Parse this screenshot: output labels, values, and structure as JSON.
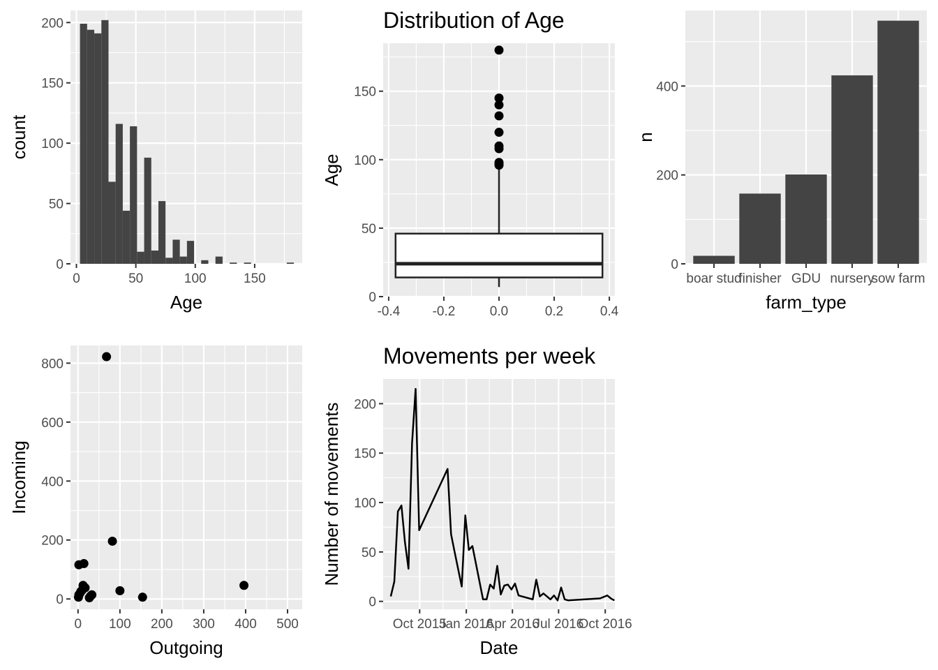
{
  "chart_data": [
    {
      "id": "hist",
      "type": "bar",
      "subtype": "histogram",
      "title": "",
      "xlabel": "Age",
      "ylabel": "count",
      "xlim": [
        -5,
        190
      ],
      "ylim": [
        0,
        210
      ],
      "xticks": [
        0,
        50,
        100,
        150
      ],
      "yticks": [
        0,
        50,
        100,
        150,
        200
      ],
      "bin_width": 6,
      "bins": [
        {
          "x0": 3,
          "x1": 9,
          "count": 199
        },
        {
          "x0": 9,
          "x1": 15,
          "count": 194
        },
        {
          "x0": 15,
          "x1": 21,
          "count": 191
        },
        {
          "x0": 21,
          "x1": 27,
          "count": 202
        },
        {
          "x0": 27,
          "x1": 33,
          "count": 68
        },
        {
          "x0": 33,
          "x1": 39,
          "count": 116
        },
        {
          "x0": 39,
          "x1": 45,
          "count": 44
        },
        {
          "x0": 45,
          "x1": 51,
          "count": 114
        },
        {
          "x0": 51,
          "x1": 57,
          "count": 10
        },
        {
          "x0": 57,
          "x1": 63,
          "count": 88
        },
        {
          "x0": 63,
          "x1": 69,
          "count": 11
        },
        {
          "x0": 69,
          "x1": 75,
          "count": 52
        },
        {
          "x0": 75,
          "x1": 81,
          "count": 5
        },
        {
          "x0": 81,
          "x1": 87,
          "count": 20
        },
        {
          "x0": 87,
          "x1": 93,
          "count": 6
        },
        {
          "x0": 93,
          "x1": 99,
          "count": 19
        },
        {
          "x0": 105,
          "x1": 111,
          "count": 3
        },
        {
          "x0": 117,
          "x1": 123,
          "count": 6
        },
        {
          "x0": 129,
          "x1": 135,
          "count": 1
        },
        {
          "x0": 141,
          "x1": 147,
          "count": 1
        },
        {
          "x0": 177,
          "x1": 183,
          "count": 1
        }
      ]
    },
    {
      "id": "box",
      "type": "box",
      "title": "Distribution of Age",
      "xlabel": "",
      "ylabel": "Age",
      "xlim": [
        -0.42,
        0.42
      ],
      "ylim": [
        0,
        185
      ],
      "xticks": [
        -0.4,
        -0.2,
        0.0,
        0.2,
        0.4
      ],
      "xtick_labels": [
        "-0.4",
        "-0.2",
        "0.0",
        "0.2",
        "0.4"
      ],
      "yticks": [
        0,
        50,
        100,
        150
      ],
      "box": {
        "x0": -0.375,
        "x1": 0.375,
        "lower_whisker": 7,
        "q1": 14,
        "median": 24,
        "q3": 46,
        "upper_whisker": 94
      },
      "outliers": [
        96,
        97,
        98,
        108,
        110,
        120,
        132,
        140,
        145,
        180
      ]
    },
    {
      "id": "farm",
      "type": "bar",
      "title": "",
      "xlabel": "farm_type",
      "ylabel": "n",
      "ylim": [
        0,
        570
      ],
      "yticks": [
        0,
        200,
        400
      ],
      "categories": [
        "boar stud",
        "finisher",
        "GDU",
        "nursery",
        "sow farm"
      ],
      "values": [
        18,
        158,
        201,
        424,
        547
      ]
    },
    {
      "id": "scatter",
      "type": "scatter",
      "title": "",
      "xlabel": "Outgoing",
      "ylabel": "Incoming",
      "xlim": [
        -18,
        535
      ],
      "ylim": [
        -35,
        860
      ],
      "xticks": [
        0,
        100,
        200,
        300,
        400,
        500
      ],
      "yticks": [
        0,
        200,
        400,
        600,
        800
      ],
      "points": [
        {
          "x": 68,
          "y": 822
        },
        {
          "x": 82,
          "y": 196
        },
        {
          "x": 2,
          "y": 116
        },
        {
          "x": 14,
          "y": 120
        },
        {
          "x": 12,
          "y": 46
        },
        {
          "x": 17,
          "y": 38
        },
        {
          "x": 7,
          "y": 26
        },
        {
          "x": 2,
          "y": 14
        },
        {
          "x": 1,
          "y": 6
        },
        {
          "x": 5,
          "y": 20
        },
        {
          "x": 10,
          "y": 30
        },
        {
          "x": 27,
          "y": 4
        },
        {
          "x": 33,
          "y": 14
        },
        {
          "x": 30,
          "y": 10
        },
        {
          "x": 100,
          "y": 28
        },
        {
          "x": 154,
          "y": 6
        },
        {
          "x": 396,
          "y": 46
        }
      ]
    },
    {
      "id": "line",
      "type": "line",
      "title": "Movements per week",
      "xlabel": "Date",
      "ylabel": "Number of movements",
      "x_type": "date",
      "xlim": [
        "2015-07-21",
        "2016-10-20"
      ],
      "ylim": [
        -8,
        225
      ],
      "xticks": [
        "2015-10-01",
        "2016-01-01",
        "2016-04-01",
        "2016-07-01",
        "2016-10-01"
      ],
      "xtick_labels": [
        "Oct 2015",
        "Jan 2016",
        "Apr 2016",
        "Jul 2016",
        "Oct 2016"
      ],
      "yticks": [
        0,
        50,
        100,
        150,
        200
      ],
      "points": [
        {
          "x": "2015-08-05",
          "y": 5
        },
        {
          "x": "2015-08-12",
          "y": 20
        },
        {
          "x": "2015-08-19",
          "y": 91
        },
        {
          "x": "2015-08-26",
          "y": 97
        },
        {
          "x": "2015-09-02",
          "y": 60
        },
        {
          "x": "2015-09-09",
          "y": 33
        },
        {
          "x": "2015-09-16",
          "y": 160
        },
        {
          "x": "2015-09-23",
          "y": 215
        },
        {
          "x": "2015-09-30",
          "y": 72
        },
        {
          "x": "2015-11-25",
          "y": 134
        },
        {
          "x": "2015-12-02",
          "y": 68
        },
        {
          "x": "2015-12-09",
          "y": 50
        },
        {
          "x": "2015-12-23",
          "y": 15
        },
        {
          "x": "2015-12-30",
          "y": 87
        },
        {
          "x": "2016-01-06",
          "y": 52
        },
        {
          "x": "2016-01-13",
          "y": 56
        },
        {
          "x": "2016-02-03",
          "y": 2
        },
        {
          "x": "2016-02-10",
          "y": 2
        },
        {
          "x": "2016-02-17",
          "y": 17
        },
        {
          "x": "2016-02-24",
          "y": 13
        },
        {
          "x": "2016-03-02",
          "y": 36
        },
        {
          "x": "2016-03-09",
          "y": 7
        },
        {
          "x": "2016-03-16",
          "y": 16
        },
        {
          "x": "2016-03-23",
          "y": 17
        },
        {
          "x": "2016-03-30",
          "y": 12
        },
        {
          "x": "2016-04-06",
          "y": 18
        },
        {
          "x": "2016-04-13",
          "y": 6
        },
        {
          "x": "2016-05-11",
          "y": 2
        },
        {
          "x": "2016-05-18",
          "y": 22
        },
        {
          "x": "2016-05-25",
          "y": 5
        },
        {
          "x": "2016-06-01",
          "y": 8
        },
        {
          "x": "2016-06-15",
          "y": 2
        },
        {
          "x": "2016-06-22",
          "y": 6
        },
        {
          "x": "2016-06-29",
          "y": 1
        },
        {
          "x": "2016-07-06",
          "y": 14
        },
        {
          "x": "2016-07-13",
          "y": 2
        },
        {
          "x": "2016-07-20",
          "y": 1
        },
        {
          "x": "2016-09-21",
          "y": 3
        },
        {
          "x": "2016-10-05",
          "y": 6
        },
        {
          "x": "2016-10-12",
          "y": 3
        },
        {
          "x": "2016-10-19",
          "y": 1
        }
      ]
    }
  ]
}
